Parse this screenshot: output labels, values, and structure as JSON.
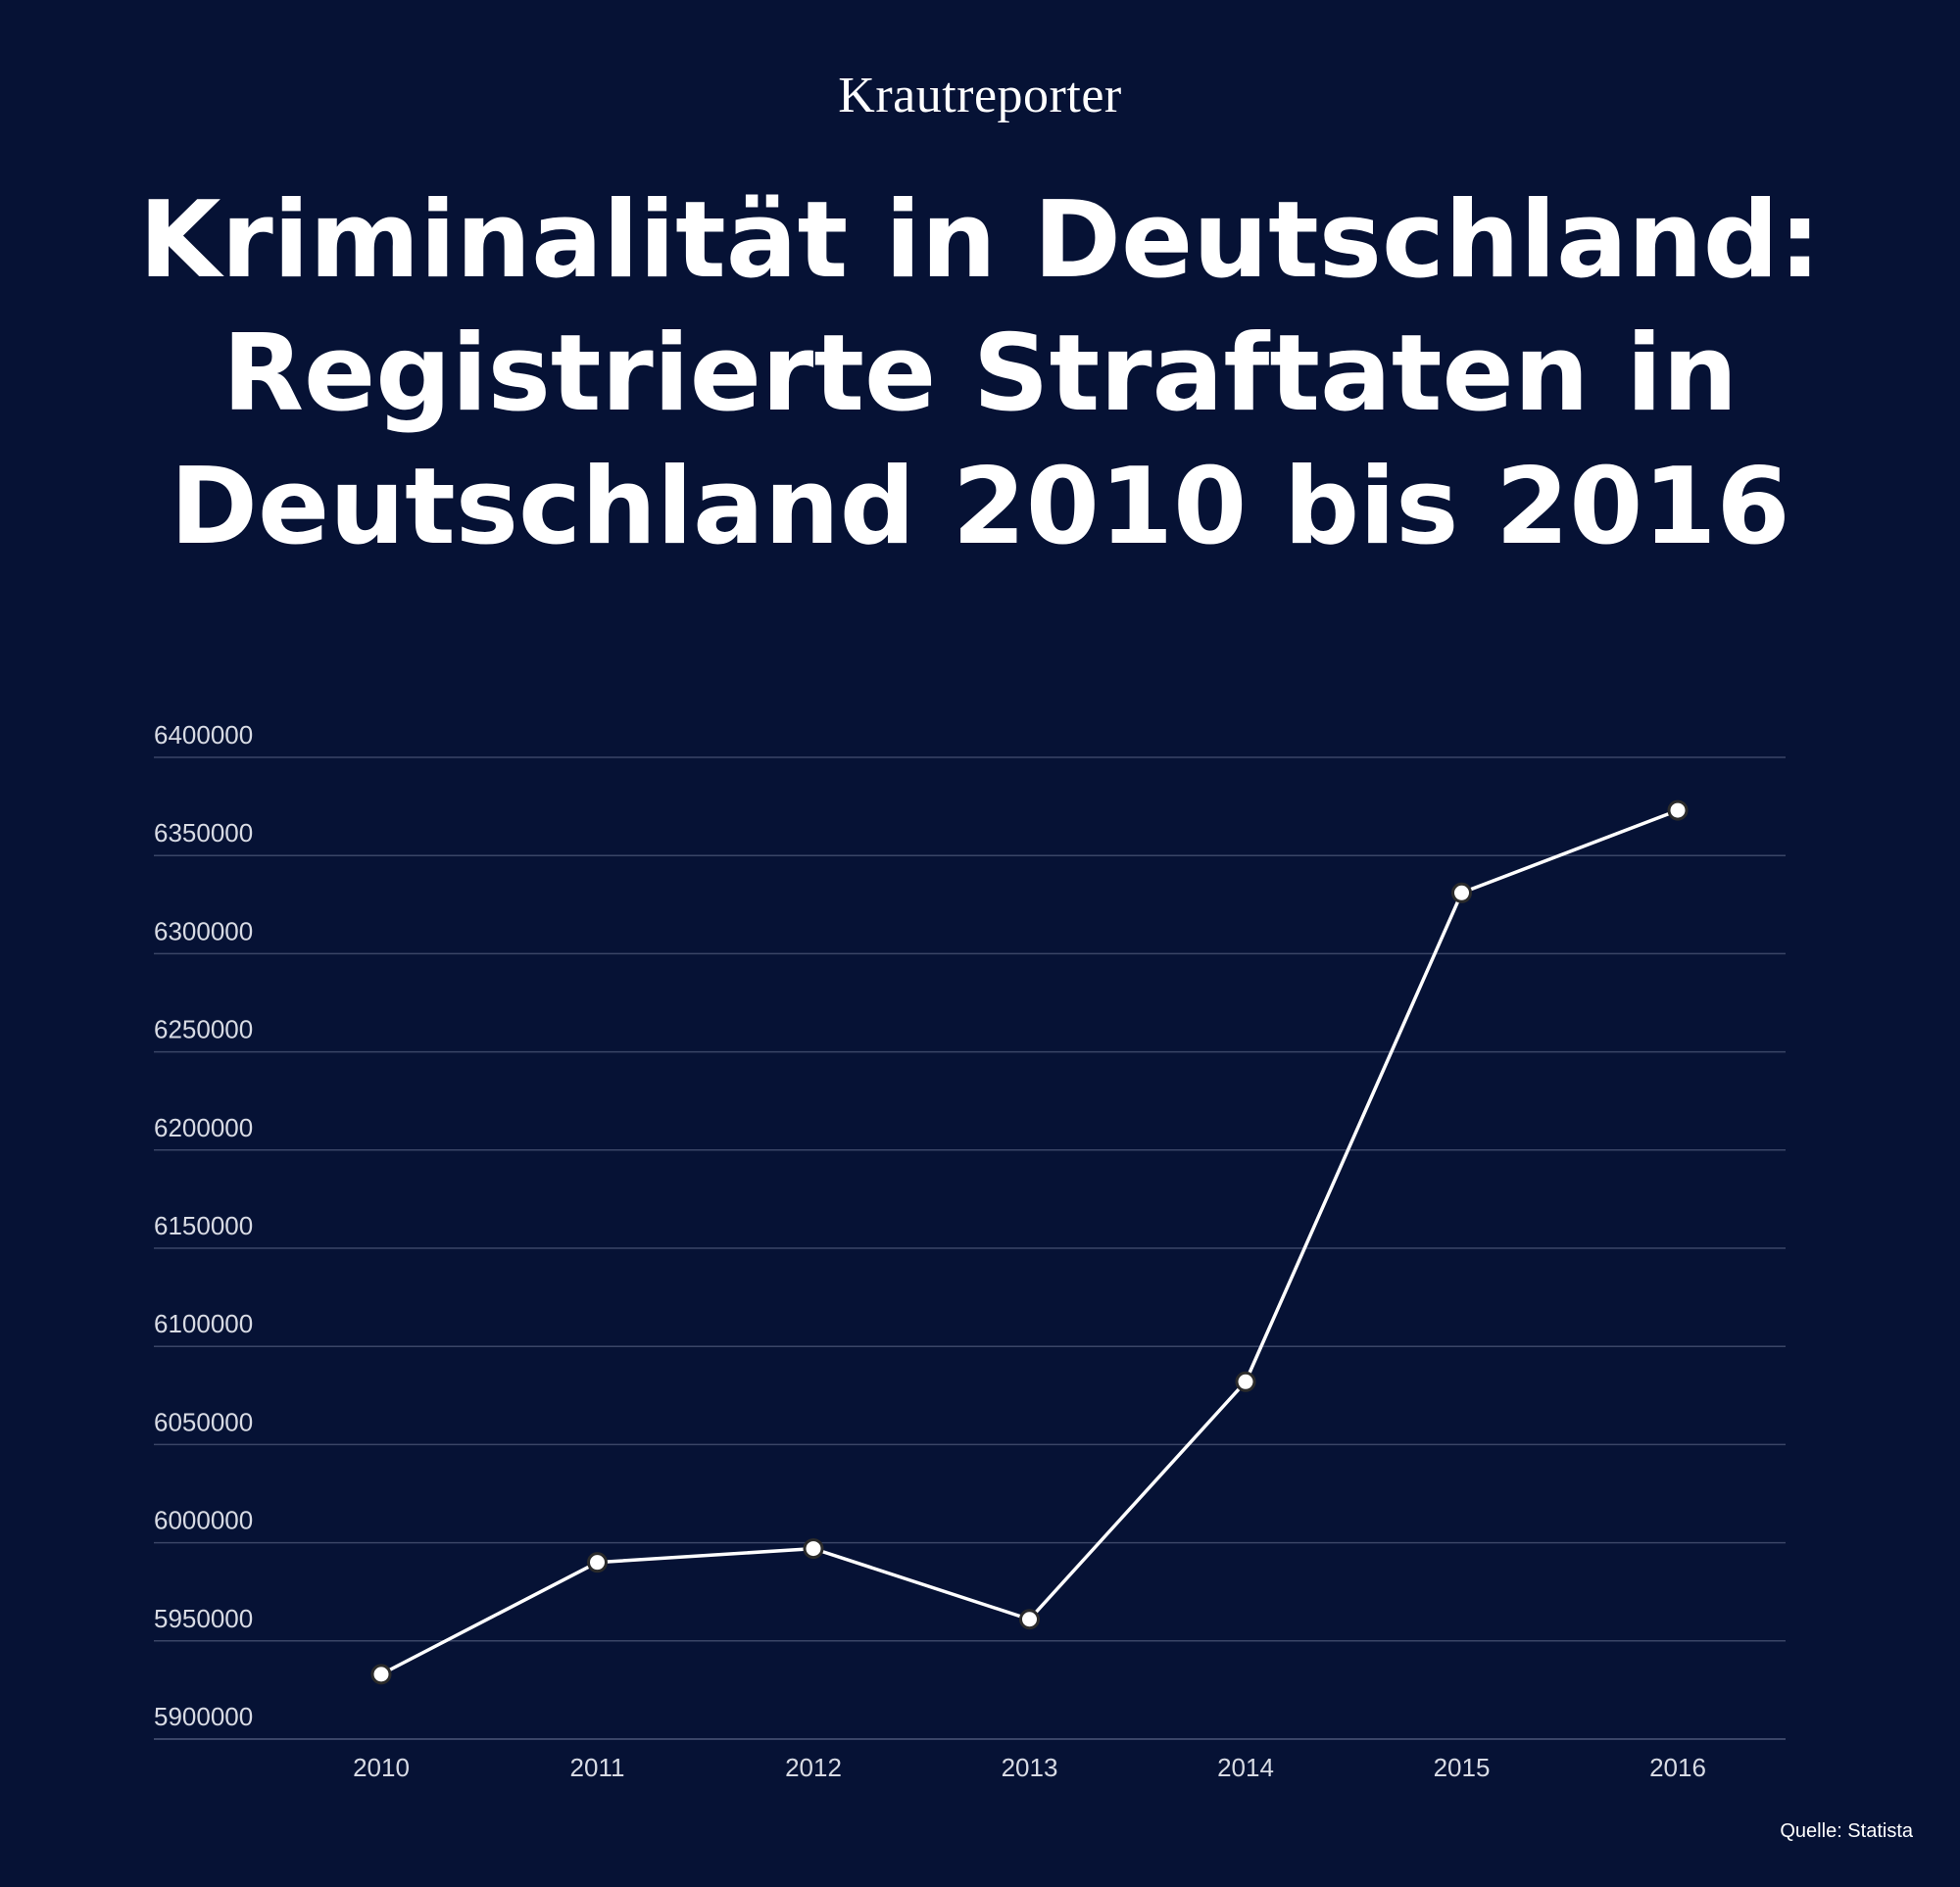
{
  "brand": "Krautreporter",
  "title_lines": [
    "Kriminalität in Deutschland:",
    "Registrierte Straftaten in",
    "Deutschland 2010 bis 2016"
  ],
  "source": "Quelle: Statista",
  "colors": {
    "background": "#061235",
    "line": "#ffffff",
    "grid": "#3a4566",
    "tick": "#d8dbe4"
  },
  "chart_data": {
    "type": "line",
    "title": "Kriminalität in Deutschland: Registrierte Straftaten in Deutschland 2010 bis 2016",
    "xlabel": "",
    "ylabel": "",
    "categories": [
      "2010",
      "2011",
      "2012",
      "2013",
      "2014",
      "2015",
      "2016"
    ],
    "series": [
      {
        "name": "Registrierte Straftaten",
        "values": [
          5933000,
          5990000,
          5997000,
          5961000,
          6082000,
          6331000,
          6373000
        ]
      }
    ],
    "ylim": [
      5900000,
      6400000
    ],
    "yticks": [
      5900000,
      5950000,
      6000000,
      6050000,
      6100000,
      6150000,
      6200000,
      6250000,
      6300000,
      6350000,
      6400000
    ],
    "grid": true,
    "legend": "none"
  }
}
